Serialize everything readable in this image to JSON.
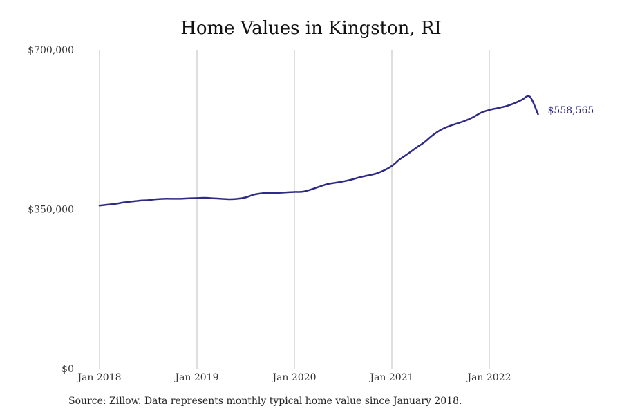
{
  "title": "Home Values in Kingston, RI",
  "source": "Source: Zillow. Data represents monthly typical home value since January 2018.",
  "end_label": "$558,565",
  "colors": {
    "line": "#2e2a85",
    "grid": "#bdbdbd"
  },
  "chart_data": {
    "type": "line",
    "title": "Home Values in Kingston, RI",
    "xlabel": "",
    "ylabel": "",
    "ylim": [
      0,
      700000
    ],
    "yticks": [
      0,
      350000,
      700000
    ],
    "ytick_labels": [
      "$0",
      "$350,000",
      "$700,000"
    ],
    "xtick_labels": [
      "Jan 2018",
      "Jan 2019",
      "Jan 2020",
      "Jan 2021",
      "Jan 2022"
    ],
    "grid": "vertical lines at each January",
    "x": [
      "2018-01",
      "2018-02",
      "2018-03",
      "2018-04",
      "2018-05",
      "2018-06",
      "2018-07",
      "2018-08",
      "2018-09",
      "2018-10",
      "2018-11",
      "2018-12",
      "2019-01",
      "2019-02",
      "2019-03",
      "2019-04",
      "2019-05",
      "2019-06",
      "2019-07",
      "2019-08",
      "2019-09",
      "2019-10",
      "2019-11",
      "2019-12",
      "2020-01",
      "2020-02",
      "2020-03",
      "2020-04",
      "2020-05",
      "2020-06",
      "2020-07",
      "2020-08",
      "2020-09",
      "2020-10",
      "2020-11",
      "2020-12",
      "2021-01",
      "2021-02",
      "2021-03",
      "2021-04",
      "2021-05",
      "2021-06",
      "2021-07",
      "2021-08",
      "2021-09",
      "2021-10",
      "2021-11",
      "2021-12",
      "2022-01",
      "2022-02",
      "2022-03",
      "2022-04",
      "2022-05",
      "2022-06",
      "2022-07"
    ],
    "series": [
      {
        "values": [
          358000,
          360000,
          362000,
          365000,
          367000,
          369000,
          370000,
          372000,
          373000,
          373000,
          373000,
          374000,
          374500,
          375000,
          374000,
          373000,
          372000,
          373000,
          376000,
          382000,
          385000,
          386000,
          386000,
          387000,
          388000,
          388500,
          393000,
          399000,
          405000,
          408000,
          411000,
          415000,
          420000,
          424000,
          428000,
          435000,
          445000,
          460000,
          472000,
          485000,
          497000,
          512000,
          524000,
          532000,
          538000,
          544000,
          552000,
          562000,
          568000,
          572000,
          576000,
          582000,
          590000,
          597000,
          558565
        ]
      }
    ]
  }
}
